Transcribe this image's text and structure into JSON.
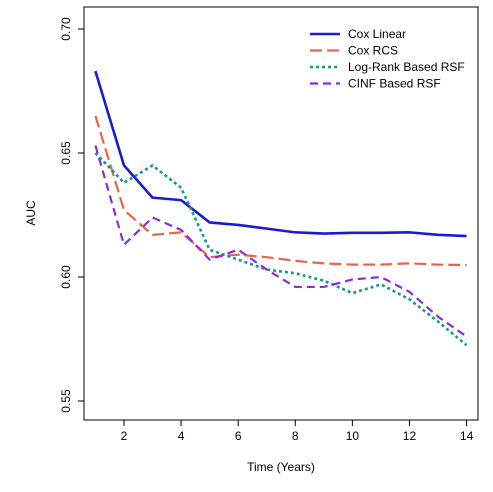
{
  "chart_data": {
    "type": "line",
    "xlabel": "Time (Years)",
    "ylabel": "AUC",
    "xlim": [
      0.6,
      14.4
    ],
    "ylim": [
      0.55,
      0.7
    ],
    "xticks": [
      2,
      4,
      6,
      8,
      10,
      12,
      14
    ],
    "yticks": [
      0.55,
      0.6,
      0.65,
      0.7
    ],
    "ytick_labels": [
      "0.55",
      "0.60",
      "0.65",
      "0.70"
    ],
    "grid": false,
    "legend_position": "top-right",
    "x": [
      1,
      2,
      3,
      4,
      5,
      6,
      7,
      8,
      9,
      10,
      11,
      12,
      13,
      14
    ],
    "series": [
      {
        "name": "Cox Linear",
        "color": "#1a1ad6",
        "dash": "solid",
        "values": [
          0.683,
          0.645,
          0.632,
          0.631,
          0.622,
          0.621,
          0.6195,
          0.618,
          0.6175,
          0.6178,
          0.6178,
          0.618,
          0.617,
          0.6165
        ]
      },
      {
        "name": "Cox RCS",
        "color": "#e8654a",
        "dash": "longdash",
        "values": [
          0.665,
          0.627,
          0.617,
          0.618,
          0.608,
          0.609,
          0.608,
          0.6065,
          0.6055,
          0.605,
          0.605,
          0.6055,
          0.605,
          0.6048
        ]
      },
      {
        "name": "Log-Rank Based RSF",
        "color": "#149a8c",
        "dash": "dotted",
        "values": [
          0.65,
          0.638,
          0.645,
          0.636,
          0.611,
          0.607,
          0.603,
          0.6015,
          0.5985,
          0.5935,
          0.597,
          0.591,
          0.582,
          0.5725
        ]
      },
      {
        "name": "CINF Based RSF",
        "color": "#8a2be2",
        "dash": "dashed",
        "values": [
          0.653,
          0.613,
          0.624,
          0.619,
          0.607,
          0.611,
          0.603,
          0.596,
          0.596,
          0.599,
          0.6,
          0.594,
          0.584,
          0.576
        ]
      }
    ]
  }
}
